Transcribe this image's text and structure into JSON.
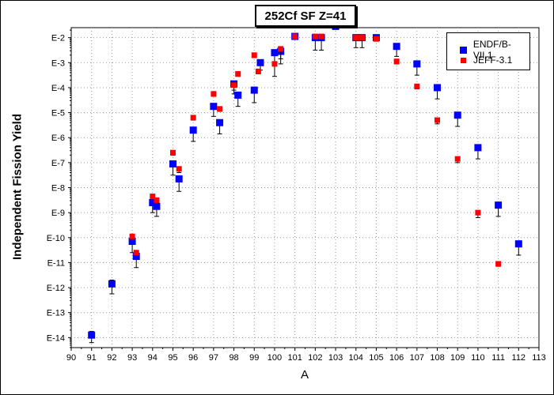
{
  "chart_data": {
    "type": "scatter",
    "title": "252Cf SF Z=41",
    "xlabel": "A",
    "ylabel": "Independent Fission Yield",
    "xlim": [
      90,
      113
    ],
    "ylim": [
      -14.4,
      -1.6
    ],
    "yscale": "log",
    "x_ticks": [
      "90",
      "91",
      "92",
      "93",
      "94",
      "95",
      "96",
      "97",
      "98",
      "99",
      "100",
      "101",
      "102",
      "103",
      "104",
      "105",
      "106",
      "107",
      "108",
      "109",
      "110",
      "111",
      "112",
      "113"
    ],
    "y_ticks": [
      {
        "label": "E-2",
        "exp": -2
      },
      {
        "label": "E-3",
        "exp": -3
      },
      {
        "label": "E-4",
        "exp": -4
      },
      {
        "label": "E-5",
        "exp": -5
      },
      {
        "label": "E-6",
        "exp": -6
      },
      {
        "label": "E-7",
        "exp": -7
      },
      {
        "label": "E-8",
        "exp": -8
      },
      {
        "label": "E-9",
        "exp": -9
      },
      {
        "label": "E-10",
        "exp": -10
      },
      {
        "label": "E-11",
        "exp": -11
      },
      {
        "label": "E-12",
        "exp": -12
      },
      {
        "label": "E-13",
        "exp": -13
      },
      {
        "label": "E-14",
        "exp": -14
      }
    ],
    "grid": true,
    "legend_position": "top-right",
    "series": [
      {
        "name": "ENDF/B-VII.1",
        "color": "#0000ff",
        "marker": "square",
        "points": [
          {
            "x": 91,
            "log_y": -13.9,
            "err_hi": 0.15,
            "err_lo": 0.3
          },
          {
            "x": 92,
            "log_y": -11.85,
            "err_hi": 0.15,
            "err_lo": 0.4
          },
          {
            "x": 93,
            "log_y": -10.15,
            "err_hi": 0.1,
            "err_lo": 0.45
          },
          {
            "x": 93.2,
            "log_y": -10.75,
            "err_hi": 0.1,
            "err_lo": 0.45
          },
          {
            "x": 94,
            "log_y": -8.6,
            "err_hi": 0.1,
            "err_lo": 0.4
          },
          {
            "x": 94.2,
            "log_y": -8.75,
            "err_hi": 0.1,
            "err_lo": 0.4
          },
          {
            "x": 95,
            "log_y": -7.05,
            "err_hi": 0.1,
            "err_lo": 0.45
          },
          {
            "x": 95.3,
            "log_y": -7.65,
            "err_hi": 0.1,
            "err_lo": 0.5
          },
          {
            "x": 96,
            "log_y": -5.7,
            "err_hi": 0.1,
            "err_lo": 0.45
          },
          {
            "x": 97,
            "log_y": -4.75,
            "err_hi": 0.1,
            "err_lo": 0.4
          },
          {
            "x": 97.3,
            "log_y": -5.4,
            "err_hi": 0.1,
            "err_lo": 0.45
          },
          {
            "x": 98,
            "log_y": -3.85,
            "err_hi": 0.1,
            "err_lo": 0.4
          },
          {
            "x": 98.2,
            "log_y": -4.3,
            "err_hi": 0.1,
            "err_lo": 0.45
          },
          {
            "x": 99,
            "log_y": -4.1,
            "err_hi": 0.1,
            "err_lo": 0.5
          },
          {
            "x": 99.3,
            "log_y": -3.0,
            "err_hi": 0.1,
            "err_lo": 0.3
          },
          {
            "x": 100,
            "log_y": -2.6,
            "err_hi": 0.1,
            "err_lo": 0.4
          },
          {
            "x": 100.3,
            "log_y": -2.55,
            "err_hi": 0.1,
            "err_lo": 0.5
          },
          {
            "x": 101,
            "log_y": -1.95,
            "err_hi": 0.05,
            "err_lo": 0.05
          },
          {
            "x": 102,
            "log_y": -2.0,
            "err_hi": 0.05,
            "err_lo": 0.5
          },
          {
            "x": 102.3,
            "log_y": -2.0,
            "err_hi": 0.05,
            "err_lo": 0.5
          },
          {
            "x": 103,
            "log_y": -1.55,
            "err_hi": 0.05,
            "err_lo": 0.05
          },
          {
            "x": 104,
            "log_y": -2.0,
            "err_hi": 0.1,
            "err_lo": 0.4
          },
          {
            "x": 104.3,
            "log_y": -2.0,
            "err_hi": 0.1,
            "err_lo": 0.4
          },
          {
            "x": 105,
            "log_y": -2.0,
            "err_hi": 0.05,
            "err_lo": 0.1
          },
          {
            "x": 106,
            "log_y": -2.35,
            "err_hi": 0.1,
            "err_lo": 0.4
          },
          {
            "x": 107,
            "log_y": -3.05,
            "err_hi": 0.1,
            "err_lo": 0.45
          },
          {
            "x": 108,
            "log_y": -4.0,
            "err_hi": 0.1,
            "err_lo": 0.45
          },
          {
            "x": 109,
            "log_y": -5.1,
            "err_hi": 0.1,
            "err_lo": 0.45
          },
          {
            "x": 110,
            "log_y": -6.4,
            "err_hi": 0.1,
            "err_lo": 0.45
          },
          {
            "x": 111,
            "log_y": -8.7,
            "err_hi": 0.1,
            "err_lo": 0.45
          },
          {
            "x": 112,
            "log_y": -10.25,
            "err_hi": 0.1,
            "err_lo": 0.45
          }
        ]
      },
      {
        "name": "JEFF-3.1",
        "color": "#ff0000",
        "marker": "square",
        "points": [
          {
            "x": 93,
            "log_y": -9.95,
            "err_hi": 0.05,
            "err_lo": 0.1
          },
          {
            "x": 93.2,
            "log_y": -10.6,
            "err_hi": 0.05,
            "err_lo": 0.1
          },
          {
            "x": 94,
            "log_y": -8.35,
            "err_hi": 0.05,
            "err_lo": 0.1
          },
          {
            "x": 94.2,
            "log_y": -8.5,
            "err_hi": 0.05,
            "err_lo": 0.1
          },
          {
            "x": 95,
            "log_y": -6.6,
            "err_hi": 0.05,
            "err_lo": 0.1
          },
          {
            "x": 95.3,
            "log_y": -7.25,
            "err_hi": 0.05,
            "err_lo": 0.15
          },
          {
            "x": 96,
            "log_y": -5.2,
            "err_hi": 0.05,
            "err_lo": 0.1
          },
          {
            "x": 97,
            "log_y": -4.25,
            "err_hi": 0.05,
            "err_lo": 0.1
          },
          {
            "x": 97.3,
            "log_y": -4.85,
            "err_hi": 0.05,
            "err_lo": 0.1
          },
          {
            "x": 98,
            "log_y": -3.9,
            "err_hi": 0.1,
            "err_lo": 0.2
          },
          {
            "x": 98.2,
            "log_y": -3.45,
            "err_hi": 0.05,
            "err_lo": 0.1
          },
          {
            "x": 99,
            "log_y": -2.7,
            "err_hi": 0.05,
            "err_lo": 0.1
          },
          {
            "x": 99.2,
            "log_y": -3.35,
            "err_hi": 0.05,
            "err_lo": 0.1
          },
          {
            "x": 100,
            "log_y": -3.05,
            "err_hi": 0.05,
            "err_lo": 0.5
          },
          {
            "x": 100.3,
            "log_y": -2.45,
            "err_hi": 0.05,
            "err_lo": 0.4
          },
          {
            "x": 101,
            "log_y": -1.95,
            "err_hi": 0.05,
            "err_lo": 0.05
          },
          {
            "x": 102,
            "log_y": -1.95,
            "err_hi": 0.05,
            "err_lo": 0.05
          },
          {
            "x": 102.3,
            "log_y": -1.95,
            "err_hi": 0.05,
            "err_lo": 0.05
          },
          {
            "x": 103,
            "log_y": -1.5,
            "err_hi": 0.05,
            "err_lo": 0.05
          },
          {
            "x": 104,
            "log_y": -2.0,
            "err_hi": 0.05,
            "err_lo": 0.05
          },
          {
            "x": 104.3,
            "log_y": -2.0,
            "err_hi": 0.05,
            "err_lo": 0.05
          },
          {
            "x": 105,
            "log_y": -2.05,
            "err_hi": 0.05,
            "err_lo": 0.05
          },
          {
            "x": 106,
            "log_y": -2.95,
            "err_hi": 0.05,
            "err_lo": 0.1
          },
          {
            "x": 107,
            "log_y": -3.95,
            "err_hi": 0.05,
            "err_lo": 0.1
          },
          {
            "x": 108,
            "log_y": -5.3,
            "err_hi": 0.05,
            "err_lo": 0.15
          },
          {
            "x": 109,
            "log_y": -6.85,
            "err_hi": 0.05,
            "err_lo": 0.15
          },
          {
            "x": 110,
            "log_y": -9.0,
            "err_hi": 0.05,
            "err_lo": 0.2
          },
          {
            "x": 111,
            "log_y": -11.05,
            "err_hi": 0.05,
            "err_lo": 0.1
          }
        ]
      }
    ]
  }
}
